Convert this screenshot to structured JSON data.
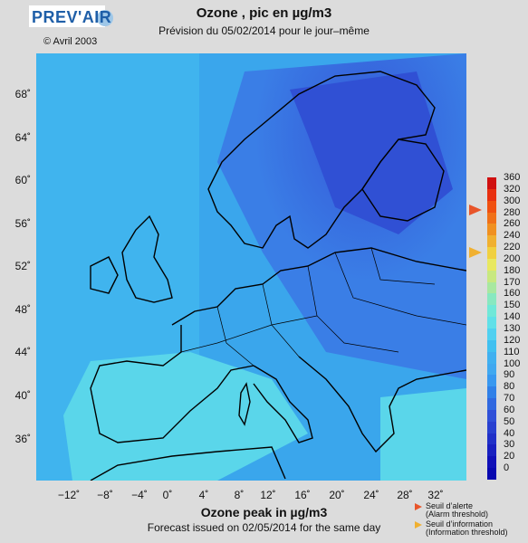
{
  "header": {
    "logo": "PREV'AIR",
    "copyright": "© Avril 2003",
    "title_fr": "Ozone , pic en µg/m3",
    "subtitle_fr": "Prévision du 05/02/2014 pour le jour–même"
  },
  "footer": {
    "title_en": "Ozone peak in µg/m3",
    "subtitle_en": "Forecast issued on 02/05/2014 for the same day"
  },
  "axes": {
    "latitudes": [
      "68˚",
      "64˚",
      "60˚",
      "56˚",
      "52˚",
      "48˚",
      "44˚",
      "40˚",
      "36˚"
    ],
    "longitudes": [
      "−12˚",
      "−8˚",
      "−4˚",
      "0˚",
      "4˚",
      "8˚",
      "12˚",
      "16˚",
      "20˚",
      "24˚",
      "28˚",
      "32˚"
    ]
  },
  "colorbar": {
    "labels": [
      "360",
      "320",
      "300",
      "280",
      "260",
      "240",
      "220",
      "200",
      "180",
      "170",
      "160",
      "150",
      "140",
      "130",
      "120",
      "110",
      "100",
      "90",
      "80",
      "70",
      "60",
      "50",
      "40",
      "30",
      "20",
      "0"
    ],
    "colors": [
      "#d01010",
      "#e83010",
      "#f05010",
      "#f07018",
      "#f09020",
      "#f0b030",
      "#f0d040",
      "#e8e860",
      "#c8e880",
      "#a8e8a0",
      "#88e8c0",
      "#70e8d8",
      "#60e0e8",
      "#50d0f0",
      "#40c0f0",
      "#40b0f0",
      "#40a8f0",
      "#3898f0",
      "#3080e8",
      "#3068e0",
      "#3050d8",
      "#2840d0",
      "#2030c8",
      "#1820c0",
      "#1010b8",
      "#0808b0"
    ]
  },
  "legend": {
    "alarm_fr": "Seuil d’alerte",
    "alarm_en": "(Alarm threshold)",
    "info_fr": "Seuil d’information",
    "info_en": "(Information threshold)"
  }
}
